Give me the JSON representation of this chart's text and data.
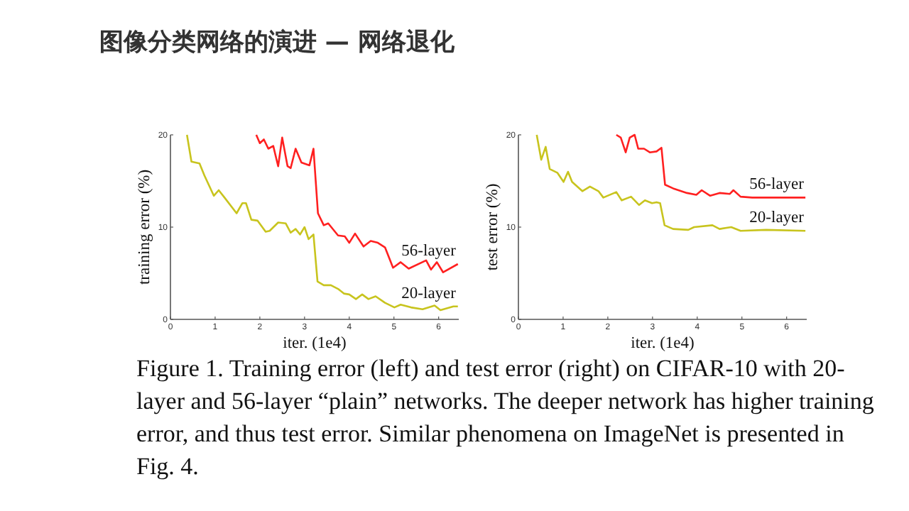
{
  "chart_data": [
    {
      "type": "line",
      "title": "图像分类网络的演进 — 网络退化",
      "xlabel": "iter. (1e4)",
      "ylabel": "training error (%)",
      "xlim": [
        0,
        6.45
      ],
      "ylim": [
        0,
        20
      ],
      "xticks": [
        0,
        1,
        2,
        3,
        4,
        5,
        6
      ],
      "yticks": [
        0,
        10,
        20
      ],
      "series": [
        {
          "name": "56-layer",
          "color": "#ff2020",
          "x": [
            1.92,
            2.0,
            2.09,
            2.19,
            2.3,
            2.41,
            2.5,
            2.62,
            2.69,
            2.8,
            2.93,
            3.11,
            3.2,
            3.3,
            3.43,
            3.53,
            3.75,
            3.9,
            4.0,
            4.13,
            4.32,
            4.48,
            4.64,
            4.8,
            4.98,
            5.15,
            5.33,
            5.72,
            5.83,
            5.96,
            6.1,
            6.43
          ],
          "values": [
            20,
            19.1,
            19.5,
            18.5,
            18.8,
            16.6,
            19.7,
            16.6,
            16.4,
            18.5,
            17.0,
            16.7,
            18.5,
            11.5,
            10.2,
            10.4,
            9.1,
            9.0,
            8.3,
            9.3,
            7.9,
            8.5,
            8.3,
            7.8,
            5.6,
            6.2,
            5.5,
            6.4,
            5.4,
            6.2,
            5.1,
            6.0
          ]
        },
        {
          "name": "20-layer",
          "color": "#c8c41e",
          "x": [
            0.37,
            0.47,
            0.65,
            0.76,
            0.97,
            1.08,
            1.21,
            1.48,
            1.61,
            1.69,
            1.81,
            1.95,
            2.13,
            2.22,
            2.41,
            2.58,
            2.69,
            2.8,
            2.9,
            3.0,
            3.09,
            3.2,
            3.29,
            3.43,
            3.59,
            3.75,
            3.88,
            4.0,
            4.15,
            4.29,
            4.43,
            4.59,
            4.8,
            5.01,
            5.15,
            5.38,
            5.64,
            5.91,
            6.04,
            6.33,
            6.43
          ],
          "values": [
            20,
            17.1,
            16.9,
            15.6,
            13.4,
            14.0,
            13.2,
            11.5,
            12.6,
            12.6,
            10.8,
            10.7,
            9.5,
            9.6,
            10.5,
            10.4,
            9.4,
            9.8,
            9.2,
            10.0,
            8.7,
            9.2,
            4.1,
            3.7,
            3.7,
            3.3,
            2.8,
            2.7,
            2.2,
            2.7,
            2.2,
            2.5,
            1.8,
            1.3,
            1.6,
            1.3,
            1.1,
            1.5,
            1.0,
            1.4,
            1.4
          ]
        }
      ]
    },
    {
      "type": "line",
      "xlabel": "iter. (1e4)",
      "ylabel": "test error (%)",
      "xlim": [
        0,
        6.45
      ],
      "ylim": [
        0,
        20
      ],
      "xticks": [
        0,
        1,
        2,
        3,
        4,
        5,
        6
      ],
      "yticks": [
        0,
        10,
        20
      ],
      "annotations": [
        "Figure 1. Training error (left) and test error (right) on CIFAR-10 with 20-layer and 56-layer “plain” networks. The deeper network has higher training error, and thus test error. Similar phenomena on ImageNet is presented in Fig. 4."
      ],
      "series": [
        {
          "name": "56-layer",
          "color": "#ff2020",
          "x": [
            2.19,
            2.29,
            2.4,
            2.49,
            2.6,
            2.68,
            2.81,
            2.94,
            3.09,
            3.2,
            3.28,
            3.46,
            3.77,
            3.98,
            4.1,
            4.29,
            4.5,
            4.73,
            4.81,
            4.97,
            5.23,
            6.42
          ],
          "values": [
            20,
            19.7,
            18.1,
            19.7,
            20,
            18.5,
            18.5,
            18.1,
            18.2,
            18.6,
            14.6,
            14.2,
            13.7,
            13.5,
            14.0,
            13.4,
            13.7,
            13.6,
            14.0,
            13.3,
            13.2,
            13.2
          ]
        },
        {
          "name": "20-layer",
          "color": "#c8c41e",
          "x": [
            0.41,
            0.51,
            0.61,
            0.7,
            0.87,
            1.01,
            1.11,
            1.2,
            1.43,
            1.6,
            1.79,
            1.9,
            2.19,
            2.31,
            2.52,
            2.7,
            2.83,
            2.99,
            3.09,
            3.17,
            3.27,
            3.46,
            3.8,
            3.93,
            4.34,
            4.5,
            4.76,
            4.97,
            5.54,
            6.42
          ],
          "values": [
            20,
            17.3,
            18.7,
            16.3,
            15.9,
            14.9,
            16.0,
            14.9,
            13.9,
            14.4,
            13.9,
            13.2,
            13.8,
            12.9,
            13.3,
            12.4,
            12.9,
            12.6,
            12.7,
            12.6,
            10.2,
            9.8,
            9.7,
            10.0,
            10.2,
            9.8,
            10.0,
            9.6,
            9.7,
            9.6
          ]
        }
      ]
    }
  ]
}
